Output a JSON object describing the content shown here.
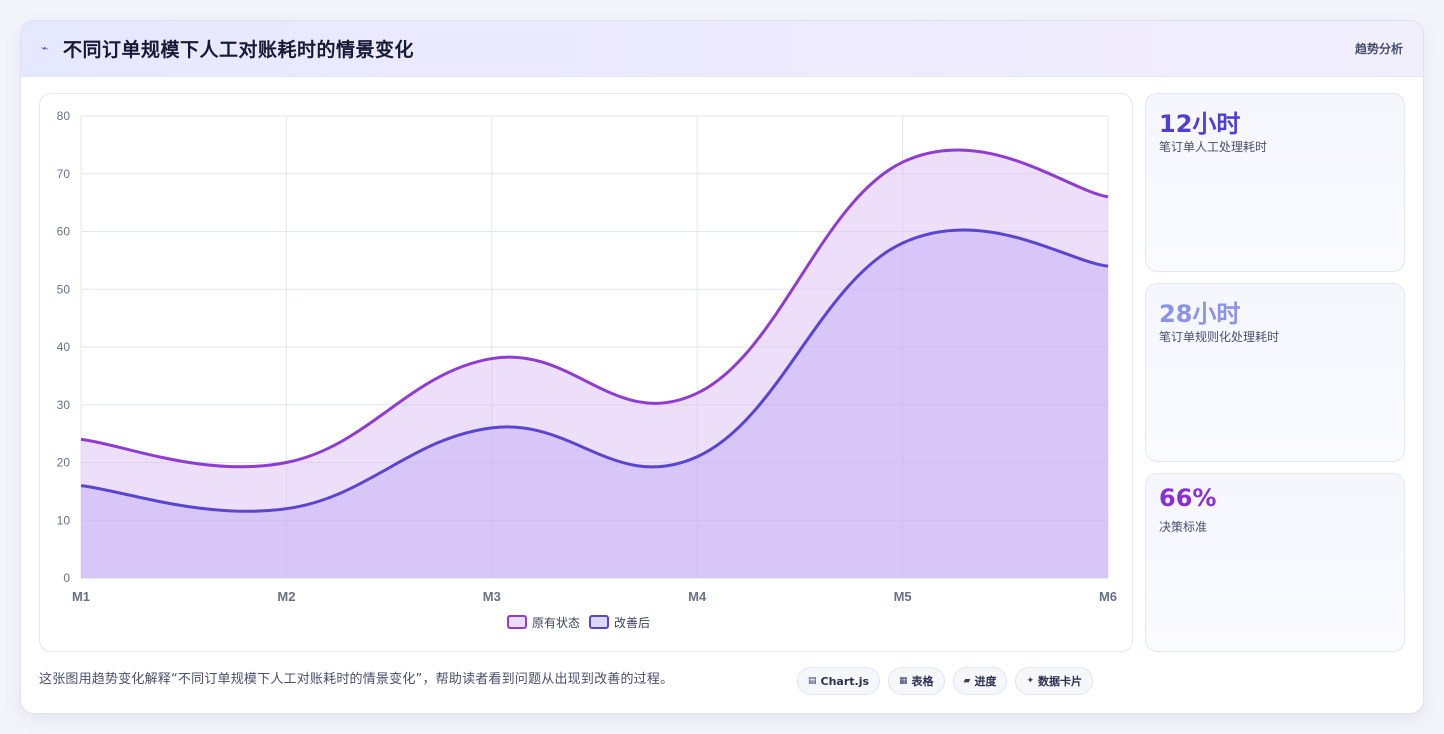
{
  "header": {
    "title_icon": "trend-line-icon",
    "title": "不同订单规模下人工对账耗时的情景变化",
    "tag": "趋势分析"
  },
  "colors": {
    "series_original": "#8f3cd2",
    "series_improved": "#5a45d0",
    "metric_1": "#4f3fd3",
    "metric_2": "#8c93e8",
    "metric_3": "#8a2ed6"
  },
  "metrics": [
    {
      "value": "12小时",
      "caption": "笔订单人工处理耗时"
    },
    {
      "value": "28小时",
      "caption": "笔订单规则化处理耗时"
    },
    {
      "value": "66%",
      "caption": "决策标准"
    }
  ],
  "footer": {
    "description": "这张图用趋势变化解释“不同订单规模下人工对账耗时的情景变化”，帮助读者看到问题从出现到改善的过程。",
    "chips": [
      {
        "icon": "chart-icon",
        "label": "Chart.js"
      },
      {
        "icon": "table-icon",
        "label": "表格"
      },
      {
        "icon": "progress-icon",
        "label": "进度"
      },
      {
        "icon": "sparkle-icon",
        "label": "数据卡片"
      }
    ]
  },
  "chart_data": {
    "type": "area",
    "categories": [
      "M1",
      "M2",
      "M3",
      "M4",
      "M5",
      "M6"
    ],
    "series": [
      {
        "name": "原有状态",
        "values": [
          24,
          20,
          38,
          32,
          72,
          66
        ],
        "color": "#8f3cd2"
      },
      {
        "name": "改善后",
        "values": [
          16,
          12,
          26,
          21,
          58,
          54
        ],
        "color": "#5a45d0"
      }
    ],
    "ylim": [
      0,
      80
    ],
    "yticks": [
      "0",
      "10",
      "20",
      "30",
      "40",
      "50",
      "60",
      "70",
      "80"
    ],
    "grid": true,
    "legend": "bottom-center",
    "curve": "smooth"
  }
}
